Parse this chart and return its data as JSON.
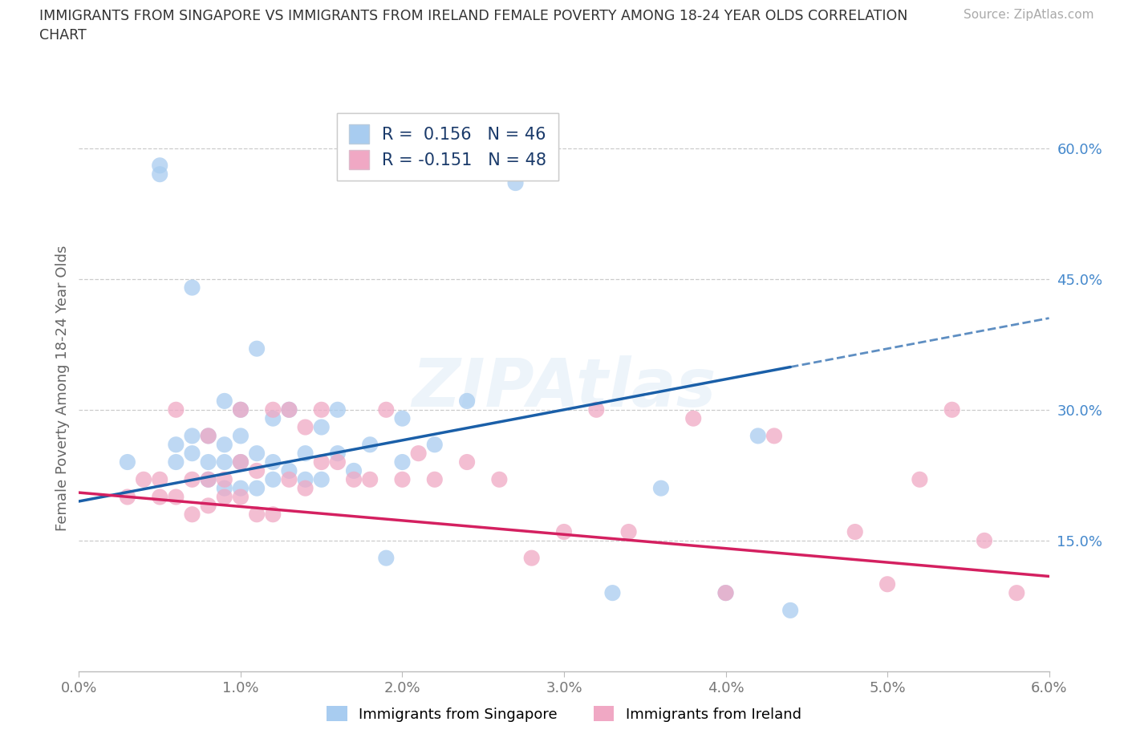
{
  "title_line1": "IMMIGRANTS FROM SINGAPORE VS IMMIGRANTS FROM IRELAND FEMALE POVERTY AMONG 18-24 YEAR OLDS CORRELATION",
  "title_line2": "CHART",
  "source": "Source: ZipAtlas.com",
  "ylabel": "Female Poverty Among 18-24 Year Olds",
  "xlim": [
    0.0,
    0.06
  ],
  "ylim": [
    0.0,
    0.65
  ],
  "xtick_vals": [
    0.0,
    0.01,
    0.02,
    0.03,
    0.04,
    0.05,
    0.06
  ],
  "xtick_labels": [
    "0.0%",
    "1.0%",
    "2.0%",
    "3.0%",
    "4.0%",
    "5.0%",
    "6.0%"
  ],
  "ytick_vals": [
    0.0,
    0.15,
    0.3,
    0.45,
    0.6
  ],
  "ytick_labels": [
    "",
    "15.0%",
    "30.0%",
    "45.0%",
    "60.0%"
  ],
  "R_singapore": 0.156,
  "N_singapore": 46,
  "R_ireland": -0.151,
  "N_ireland": 48,
  "color_singapore": "#a8ccf0",
  "color_ireland": "#f0a8c4",
  "line_color_singapore": "#1a5fa8",
  "line_color_ireland": "#d42060",
  "sg_intercept": 0.195,
  "sg_slope": 3.5,
  "ir_intercept": 0.205,
  "ir_slope": -1.6,
  "singapore_x": [
    0.003,
    0.005,
    0.005,
    0.006,
    0.006,
    0.007,
    0.007,
    0.007,
    0.008,
    0.008,
    0.008,
    0.009,
    0.009,
    0.009,
    0.009,
    0.01,
    0.01,
    0.01,
    0.01,
    0.011,
    0.011,
    0.011,
    0.012,
    0.012,
    0.012,
    0.013,
    0.013,
    0.014,
    0.014,
    0.015,
    0.015,
    0.016,
    0.016,
    0.017,
    0.018,
    0.019,
    0.02,
    0.02,
    0.022,
    0.024,
    0.027,
    0.033,
    0.036,
    0.04,
    0.042,
    0.044
  ],
  "singapore_y": [
    0.24,
    0.57,
    0.58,
    0.24,
    0.26,
    0.25,
    0.27,
    0.44,
    0.22,
    0.24,
    0.27,
    0.21,
    0.24,
    0.26,
    0.31,
    0.21,
    0.24,
    0.27,
    0.3,
    0.21,
    0.25,
    0.37,
    0.22,
    0.24,
    0.29,
    0.23,
    0.3,
    0.22,
    0.25,
    0.22,
    0.28,
    0.25,
    0.3,
    0.23,
    0.26,
    0.13,
    0.24,
    0.29,
    0.26,
    0.31,
    0.56,
    0.09,
    0.21,
    0.09,
    0.27,
    0.07
  ],
  "ireland_x": [
    0.003,
    0.004,
    0.005,
    0.005,
    0.006,
    0.006,
    0.007,
    0.007,
    0.008,
    0.008,
    0.008,
    0.009,
    0.009,
    0.01,
    0.01,
    0.01,
    0.011,
    0.011,
    0.012,
    0.012,
    0.013,
    0.013,
    0.014,
    0.014,
    0.015,
    0.015,
    0.016,
    0.017,
    0.018,
    0.019,
    0.02,
    0.021,
    0.022,
    0.024,
    0.026,
    0.028,
    0.03,
    0.032,
    0.034,
    0.038,
    0.04,
    0.043,
    0.048,
    0.05,
    0.052,
    0.054,
    0.056,
    0.058
  ],
  "ireland_y": [
    0.2,
    0.22,
    0.2,
    0.22,
    0.2,
    0.3,
    0.18,
    0.22,
    0.19,
    0.22,
    0.27,
    0.2,
    0.22,
    0.2,
    0.24,
    0.3,
    0.18,
    0.23,
    0.18,
    0.3,
    0.22,
    0.3,
    0.28,
    0.21,
    0.3,
    0.24,
    0.24,
    0.22,
    0.22,
    0.3,
    0.22,
    0.25,
    0.22,
    0.24,
    0.22,
    0.13,
    0.16,
    0.3,
    0.16,
    0.29,
    0.09,
    0.27,
    0.16,
    0.1,
    0.22,
    0.3,
    0.15,
    0.09
  ]
}
